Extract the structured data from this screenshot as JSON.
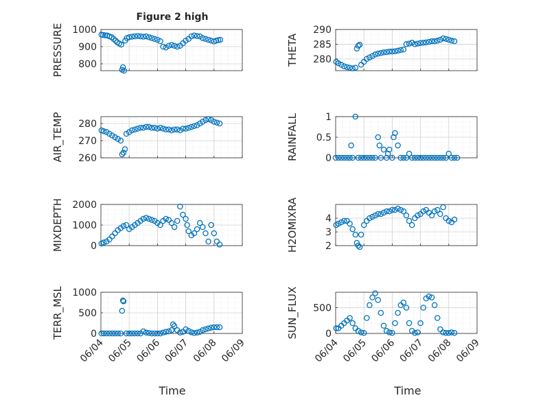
{
  "figure": {
    "title": "Figure 2 high",
    "xlabel": "Time"
  },
  "chart_data": [
    {
      "type": "scatter",
      "title": "Figure 2 high",
      "ylabel": "PRESSURE",
      "ylim": [
        760,
        1000
      ],
      "yticks": [
        800,
        900,
        1000
      ],
      "ytick_labels": [
        "800",
        "900",
        "1000"
      ],
      "grid": true,
      "xlim": [
        0,
        5
      ],
      "xticks": [
        "06/04",
        "06/05",
        "06/06",
        "06/07",
        "06/08",
        "06/09"
      ],
      "x_tick_labels_visible": false,
      "x": [
        0.02,
        0.08,
        0.15,
        0.22,
        0.3,
        0.38,
        0.45,
        0.52,
        0.58,
        0.65,
        0.72,
        0.75,
        0.78,
        0.82,
        0.86,
        0.92,
        1.0,
        1.1,
        1.2,
        1.3,
        1.4,
        1.5,
        1.6,
        1.7,
        1.8,
        1.9,
        2.0,
        2.1,
        2.2,
        2.3,
        2.4,
        2.5,
        2.6,
        2.7,
        2.8,
        2.9,
        3.0,
        3.1,
        3.2,
        3.3,
        3.4,
        3.5,
        3.6,
        3.7,
        3.8,
        3.9,
        4.0,
        4.08,
        4.15,
        4.22
      ],
      "y": [
        970,
        968,
        966,
        965,
        960,
        955,
        945,
        935,
        925,
        918,
        912,
        765,
        780,
        760,
        935,
        950,
        955,
        958,
        960,
        962,
        960,
        958,
        960,
        955,
        950,
        945,
        940,
        932,
        900,
        895,
        905,
        910,
        905,
        900,
        905,
        920,
        935,
        945,
        960,
        965,
        962,
        960,
        950,
        945,
        940,
        935,
        930,
        935,
        938,
        940
      ]
    },
    {
      "type": "scatter",
      "ylabel": "THETA",
      "ylim": [
        276,
        290
      ],
      "yticks": [
        280,
        285,
        290
      ],
      "ytick_labels": [
        "280",
        "285",
        "290"
      ],
      "grid": true,
      "xlim": [
        0,
        5
      ],
      "x_tick_labels_visible": false,
      "x": [
        0.02,
        0.1,
        0.2,
        0.3,
        0.4,
        0.5,
        0.6,
        0.7,
        0.75,
        0.8,
        0.85,
        0.9,
        1.0,
        1.1,
        1.2,
        1.3,
        1.4,
        1.5,
        1.6,
        1.7,
        1.8,
        1.9,
        2.0,
        2.1,
        2.2,
        2.3,
        2.4,
        2.5,
        2.6,
        2.7,
        2.8,
        2.9,
        3.0,
        3.1,
        3.2,
        3.3,
        3.4,
        3.5,
        3.6,
        3.7,
        3.8,
        3.9,
        4.0,
        4.1,
        4.2
      ],
      "y": [
        279,
        278.5,
        278,
        277.5,
        277.2,
        277,
        276.8,
        277,
        283.5,
        284.5,
        284.8,
        278,
        279,
        280,
        280.5,
        281,
        281.5,
        281.8,
        282,
        282.2,
        282.3,
        282.5,
        282.5,
        282.6,
        282.8,
        283,
        283.2,
        285,
        285.2,
        285.5,
        285,
        285.2,
        285.4,
        285.5,
        285.6,
        285.8,
        286,
        286,
        286.2,
        286.5,
        287,
        286.8,
        286.5,
        286.2,
        286
      ]
    },
    {
      "type": "scatter",
      "ylabel": "AIR_TEMP",
      "ylim": [
        260,
        284
      ],
      "yticks": [
        260,
        270,
        280
      ],
      "ytick_labels": [
        "260",
        "270",
        "280"
      ],
      "grid": true,
      "xlim": [
        0,
        5
      ],
      "x_tick_labels_visible": false,
      "x": [
        0.02,
        0.1,
        0.2,
        0.3,
        0.4,
        0.5,
        0.6,
        0.7,
        0.75,
        0.8,
        0.85,
        0.9,
        1.0,
        1.1,
        1.2,
        1.3,
        1.4,
        1.5,
        1.6,
        1.7,
        1.8,
        1.9,
        2.0,
        2.1,
        2.2,
        2.3,
        2.4,
        2.5,
        2.6,
        2.7,
        2.8,
        2.9,
        3.0,
        3.1,
        3.2,
        3.3,
        3.4,
        3.5,
        3.6,
        3.7,
        3.8,
        3.9,
        4.0,
        4.1,
        4.2
      ],
      "y": [
        276,
        275.5,
        275,
        274,
        273,
        272,
        271,
        270,
        262,
        263,
        265,
        274,
        275,
        276,
        276.5,
        277,
        277.5,
        277.5,
        278,
        278,
        277.5,
        277.5,
        277,
        277.5,
        277,
        276.5,
        276.5,
        276,
        276.5,
        276.5,
        276,
        277,
        277,
        277.5,
        278,
        278.5,
        279,
        280,
        281,
        282,
        282.5,
        282,
        281,
        280.5,
        280
      ]
    },
    {
      "type": "scatter",
      "ylabel": "RAINFALL",
      "ylim": [
        0,
        1
      ],
      "yticks": [
        0,
        0.5,
        1
      ],
      "ytick_labels": [
        "0",
        "0.5",
        "1"
      ],
      "grid": true,
      "xlim": [
        0,
        5
      ],
      "x_tick_labels_visible": false,
      "x": [
        0.0,
        0.1,
        0.2,
        0.3,
        0.4,
        0.5,
        0.55,
        0.6,
        0.7,
        0.8,
        0.9,
        1.0,
        1.1,
        1.2,
        1.3,
        1.4,
        1.5,
        1.55,
        1.6,
        1.7,
        1.8,
        1.85,
        1.9,
        2.0,
        2.05,
        2.1,
        2.2,
        2.3,
        2.4,
        2.5,
        2.6,
        2.7,
        2.8,
        2.9,
        3.0,
        3.1,
        3.2,
        3.3,
        3.4,
        3.5,
        3.6,
        3.7,
        3.8,
        3.9,
        4.0,
        4.1,
        4.2,
        4.3
      ],
      "y": [
        0,
        0,
        0,
        0,
        0,
        0,
        0.3,
        0,
        1.0,
        0,
        0,
        0,
        0,
        0,
        0,
        0,
        0.5,
        0.3,
        0,
        0.2,
        0,
        0.1,
        0.2,
        0,
        0.5,
        0.6,
        0.3,
        0,
        0,
        0,
        0.1,
        0,
        0,
        0,
        0,
        0,
        0,
        0,
        0,
        0,
        0,
        0,
        0,
        0,
        0.1,
        0,
        0,
        0
      ]
    },
    {
      "type": "scatter",
      "ylabel": "MIXDEPTH",
      "ylim": [
        0,
        2000
      ],
      "yticks": [
        0,
        1000,
        2000
      ],
      "ytick_labels": [
        "0",
        "1000",
        "2000"
      ],
      "grid": true,
      "xlim": [
        0,
        5
      ],
      "x_tick_labels_visible": false,
      "x": [
        0.02,
        0.1,
        0.2,
        0.3,
        0.4,
        0.5,
        0.6,
        0.7,
        0.8,
        0.9,
        1.0,
        1.1,
        1.2,
        1.3,
        1.4,
        1.5,
        1.6,
        1.7,
        1.8,
        1.9,
        2.0,
        2.1,
        2.2,
        2.3,
        2.4,
        2.5,
        2.6,
        2.7,
        2.8,
        2.9,
        3.0,
        3.05,
        3.1,
        3.2,
        3.3,
        3.4,
        3.5,
        3.6,
        3.7,
        3.8,
        3.9,
        4.0,
        4.1,
        4.2
      ],
      "y": [
        100,
        150,
        200,
        300,
        450,
        600,
        750,
        850,
        950,
        1000,
        800,
        900,
        1000,
        1100,
        1200,
        1300,
        1350,
        1300,
        1250,
        1200,
        1100,
        1000,
        1200,
        1300,
        1250,
        1100,
        900,
        1200,
        1900,
        1500,
        1300,
        1000,
        700,
        500,
        600,
        800,
        1100,
        900,
        600,
        200,
        1000,
        600,
        200,
        50
      ]
    },
    {
      "type": "scatter",
      "ylabel": "H2OMIXRA",
      "ylim": [
        2,
        5
      ],
      "yticks": [
        2,
        3,
        4
      ],
      "ytick_labels": [
        "2",
        "3",
        "4"
      ],
      "grid": true,
      "xlim": [
        0,
        5
      ],
      "x_tick_labels_visible": false,
      "x": [
        0.02,
        0.1,
        0.2,
        0.3,
        0.4,
        0.5,
        0.6,
        0.7,
        0.75,
        0.8,
        0.85,
        0.9,
        1.0,
        1.1,
        1.2,
        1.3,
        1.4,
        1.5,
        1.6,
        1.7,
        1.8,
        1.9,
        2.0,
        2.1,
        2.2,
        2.3,
        2.4,
        2.5,
        2.6,
        2.7,
        2.8,
        2.9,
        3.0,
        3.1,
        3.2,
        3.3,
        3.4,
        3.5,
        3.6,
        3.7,
        3.8,
        3.9,
        4.0,
        4.1,
        4.2
      ],
      "y": [
        3.5,
        3.6,
        3.7,
        3.8,
        3.8,
        3.6,
        3.2,
        2.8,
        2.2,
        2.0,
        1.9,
        2.8,
        3.5,
        3.8,
        4.0,
        4.1,
        4.2,
        4.3,
        4.3,
        4.4,
        4.5,
        4.5,
        4.6,
        4.6,
        4.7,
        4.6,
        4.5,
        4.2,
        3.8,
        3.5,
        4.0,
        4.2,
        4.3,
        4.5,
        4.6,
        4.4,
        4.2,
        4.5,
        4.6,
        4.3,
        4.8,
        4.0,
        3.8,
        3.7,
        3.9
      ]
    },
    {
      "type": "scatter",
      "ylabel": "TERR_MSL",
      "ylim": [
        0,
        1000
      ],
      "yticks": [
        0,
        500,
        1000
      ],
      "ytick_labels": [
        "0",
        "500",
        "1000"
      ],
      "grid": true,
      "xlim": [
        0,
        5
      ],
      "xticks": [
        "06/04",
        "06/05",
        "06/06",
        "06/07",
        "06/08",
        "06/09"
      ],
      "x_tick_labels_visible": true,
      "xlabel": "Time",
      "x": [
        0.02,
        0.1,
        0.2,
        0.3,
        0.4,
        0.5,
        0.6,
        0.7,
        0.75,
        0.78,
        0.8,
        0.9,
        1.0,
        1.1,
        1.2,
        1.3,
        1.4,
        1.5,
        1.6,
        1.7,
        1.8,
        1.9,
        2.0,
        2.1,
        2.2,
        2.3,
        2.4,
        2.5,
        2.55,
        2.6,
        2.7,
        2.8,
        2.9,
        3.0,
        3.1,
        3.2,
        3.3,
        3.4,
        3.5,
        3.6,
        3.7,
        3.8,
        3.9,
        4.0,
        4.1,
        4.2
      ],
      "y": [
        0,
        0,
        0,
        0,
        0,
        0,
        0,
        0,
        550,
        800,
        780,
        0,
        0,
        0,
        0,
        0,
        0,
        50,
        20,
        10,
        0,
        0,
        0,
        0,
        20,
        40,
        50,
        80,
        220,
        180,
        80,
        20,
        40,
        100,
        60,
        30,
        10,
        20,
        40,
        80,
        100,
        120,
        140,
        150,
        150,
        150
      ]
    },
    {
      "type": "scatter",
      "ylabel": "SUN_FLUX",
      "ylim": [
        0,
        800
      ],
      "yticks": [
        0,
        500
      ],
      "ytick_labels": [
        "0",
        "500"
      ],
      "grid": true,
      "xlim": [
        0,
        5
      ],
      "xticks": [
        "06/04",
        "06/05",
        "06/06",
        "06/07",
        "06/08",
        "06/09"
      ],
      "x_tick_labels_visible": true,
      "xlabel": "Time",
      "x": [
        0.02,
        0.1,
        0.2,
        0.3,
        0.4,
        0.5,
        0.6,
        0.7,
        0.8,
        0.9,
        1.0,
        1.1,
        1.2,
        1.3,
        1.4,
        1.5,
        1.6,
        1.7,
        1.8,
        1.9,
        2.0,
        2.1,
        2.2,
        2.3,
        2.4,
        2.5,
        2.6,
        2.7,
        2.8,
        2.9,
        3.0,
        3.1,
        3.2,
        3.3,
        3.4,
        3.5,
        3.6,
        3.7,
        3.8,
        3.9,
        4.0,
        4.1,
        4.2
      ],
      "y": [
        100,
        100,
        150,
        200,
        250,
        300,
        200,
        100,
        50,
        20,
        10,
        300,
        550,
        700,
        780,
        650,
        400,
        150,
        50,
        20,
        10,
        200,
        400,
        550,
        600,
        500,
        200,
        50,
        10,
        20,
        200,
        500,
        680,
        720,
        700,
        550,
        300,
        80,
        20,
        10,
        10,
        20,
        10
      ]
    }
  ]
}
